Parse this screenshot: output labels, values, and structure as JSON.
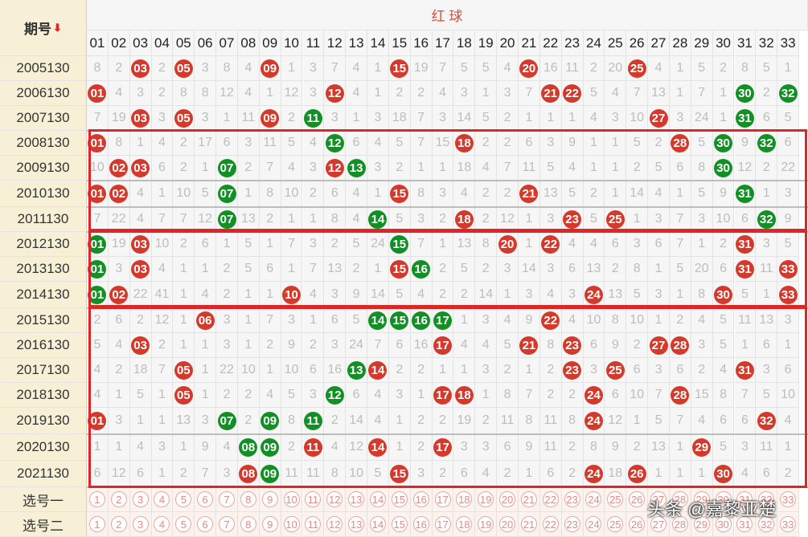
{
  "header": {
    "period_label": "期号",
    "red_ball_title": "红 球",
    "sort_icon": "down-arrow-icon"
  },
  "numbers": [
    "01",
    "02",
    "03",
    "04",
    "05",
    "06",
    "07",
    "08",
    "09",
    "10",
    "11",
    "12",
    "13",
    "14",
    "15",
    "16",
    "17",
    "18",
    "19",
    "20",
    "21",
    "22",
    "23",
    "24",
    "25",
    "26",
    "27",
    "28",
    "29",
    "30",
    "31",
    "32",
    "33"
  ],
  "colors": {
    "red_ball": "#d43a2c",
    "green_ball": "#129026",
    "box": "#e02525",
    "label_bg": "#f8f0d6"
  },
  "rows": [
    {
      "period": "2005130",
      "cells": [
        "8",
        "2",
        "R03",
        "2",
        "R05",
        "3",
        "8",
        "4",
        "R09",
        "1",
        "3",
        "7",
        "4",
        "1",
        "R15",
        "19",
        "7",
        "5",
        "5",
        "4",
        "R20",
        "16",
        "11",
        "2",
        "20",
        "R25",
        "4",
        "1",
        "5",
        "2",
        "8",
        "5",
        "1"
      ]
    },
    {
      "period": "2006130",
      "cells": [
        "R01",
        "4",
        "3",
        "2",
        "8",
        "8",
        "12",
        "4",
        "1",
        "12",
        "3",
        "R12",
        "4",
        "1",
        "2",
        "2",
        "4",
        "3",
        "1",
        "3",
        "7",
        "R21",
        "R22",
        "5",
        "4",
        "7",
        "13",
        "1",
        "7",
        "1",
        "G30",
        "2",
        "G32"
      ]
    },
    {
      "period": "2007130",
      "cells": [
        "7",
        "19",
        "R03",
        "3",
        "R05",
        "3",
        "1",
        "11",
        "R09",
        "2",
        "G11",
        "3",
        "1",
        "3",
        "18",
        "7",
        "3",
        "14",
        "5",
        "2",
        "1",
        "1",
        "1",
        "4",
        "3",
        "10",
        "R27",
        "3",
        "24",
        "1",
        "G31",
        "6",
        "5"
      ]
    },
    {
      "period": "2008130",
      "cells": [
        "R01",
        "8",
        "1",
        "4",
        "2",
        "17",
        "6",
        "3",
        "11",
        "5",
        "4",
        "G12",
        "6",
        "4",
        "5",
        "7",
        "15",
        "R18",
        "2",
        "2",
        "6",
        "3",
        "9",
        "1",
        "1",
        "5",
        "2",
        "R28",
        "5",
        "G30",
        "9",
        "G32",
        "6"
      ]
    },
    {
      "period": "2009130",
      "cells": [
        "10",
        "R02",
        "R03",
        "6",
        "2",
        "1",
        "G07",
        "2",
        "7",
        "4",
        "3",
        "R12",
        "G13",
        "3",
        "2",
        "1",
        "1",
        "18",
        "4",
        "7",
        "11",
        "5",
        "4",
        "1",
        "1",
        "2",
        "5",
        "6",
        "8",
        "G30",
        "12",
        "2",
        "22"
      ]
    },
    {
      "period": "2010130",
      "cells": [
        "R01",
        "R02",
        "4",
        "1",
        "10",
        "5",
        "G07",
        "1",
        "8",
        "10",
        "2",
        "6",
        "4",
        "1",
        "R15",
        "8",
        "3",
        "4",
        "2",
        "2",
        "R21",
        "13",
        "5",
        "2",
        "1",
        "14",
        "4",
        "1",
        "5",
        "9",
        "G31",
        "1",
        "3"
      ]
    },
    {
      "period": "2011130",
      "cells": [
        "7",
        "22",
        "4",
        "7",
        "7",
        "12",
        "G07",
        "13",
        "2",
        "1",
        "1",
        "8",
        "4",
        "G14",
        "5",
        "3",
        "2",
        "R18",
        "2",
        "12",
        "1",
        "3",
        "R23",
        "5",
        "R25",
        "1",
        "3",
        "7",
        "3",
        "10",
        "6",
        "G32",
        "9"
      ]
    },
    {
      "period": "2012130",
      "cells": [
        "G01",
        "19",
        "R03",
        "10",
        "2",
        "6",
        "1",
        "5",
        "1",
        "7",
        "3",
        "2",
        "5",
        "24",
        "G15",
        "7",
        "1",
        "13",
        "8",
        "R20",
        "1",
        "R22",
        "4",
        "4",
        "6",
        "3",
        "6",
        "7",
        "1",
        "2",
        "R31",
        "3",
        "5"
      ]
    },
    {
      "period": "2013130",
      "cells": [
        "G01",
        "3",
        "R03",
        "4",
        "1",
        "1",
        "2",
        "5",
        "6",
        "1",
        "7",
        "13",
        "2",
        "1",
        "R15",
        "G16",
        "2",
        "5",
        "2",
        "3",
        "14",
        "3",
        "6",
        "13",
        "2",
        "8",
        "1",
        "5",
        "20",
        "6",
        "R31",
        "11",
        "R33"
      ]
    },
    {
      "period": "2014130",
      "cells": [
        "G01",
        "R02",
        "22",
        "41",
        "1",
        "4",
        "2",
        "1",
        "1",
        "R10",
        "4",
        "3",
        "9",
        "14",
        "5",
        "4",
        "2",
        "2",
        "14",
        "1",
        "3",
        "4",
        "3",
        "R24",
        "13",
        "5",
        "3",
        "1",
        "8",
        "R30",
        "5",
        "1",
        "R33"
      ]
    },
    {
      "period": "2015130",
      "cells": [
        "2",
        "6",
        "2",
        "12",
        "1",
        "R06",
        "3",
        "1",
        "7",
        "3",
        "1",
        "6",
        "5",
        "G14",
        "G15",
        "G16",
        "G17",
        "1",
        "3",
        "4",
        "9",
        "R22",
        "4",
        "10",
        "8",
        "10",
        "1",
        "2",
        "4",
        "5",
        "11",
        "13",
        "3"
      ]
    },
    {
      "period": "2016130",
      "cells": [
        "5",
        "4",
        "R03",
        "2",
        "1",
        "1",
        "3",
        "1",
        "2",
        "9",
        "2",
        "3",
        "24",
        "7",
        "6",
        "16",
        "R17",
        "4",
        "4",
        "5",
        "R21",
        "8",
        "R23",
        "6",
        "9",
        "2",
        "R27",
        "R28",
        "3",
        "5",
        "1",
        "6",
        "1"
      ]
    },
    {
      "period": "2017130",
      "cells": [
        "4",
        "2",
        "18",
        "7",
        "R05",
        "1",
        "22",
        "10",
        "1",
        "10",
        "6",
        "16",
        "G13",
        "R14",
        "2",
        "2",
        "1",
        "1",
        "3",
        "2",
        "1",
        "2",
        "R23",
        "3",
        "R25",
        "6",
        "3",
        "6",
        "2",
        "4",
        "R31",
        "3",
        "6"
      ]
    },
    {
      "period": "2018130",
      "cells": [
        "4",
        "1",
        "5",
        "1",
        "R05",
        "1",
        "2",
        "2",
        "4",
        "5",
        "3",
        "G12",
        "6",
        "4",
        "3",
        "1",
        "R17",
        "R18",
        "1",
        "8",
        "7",
        "2",
        "2",
        "R24",
        "6",
        "10",
        "7",
        "R28",
        "15",
        "8",
        "7",
        "5",
        "10"
      ]
    },
    {
      "period": "2019130",
      "cells": [
        "R01",
        "3",
        "1",
        "1",
        "13",
        "3",
        "G07",
        "2",
        "G09",
        "8",
        "G11",
        "2",
        "14",
        "4",
        "1",
        "2",
        "2",
        "19",
        "2",
        "11",
        "8",
        "11",
        "8",
        "R24",
        "12",
        "1",
        "5",
        "7",
        "4",
        "6",
        "6",
        "R32",
        "4"
      ]
    },
    {
      "period": "2020130",
      "cells": [
        "1",
        "1",
        "4",
        "3",
        "1",
        "9",
        "4",
        "G08",
        "G09",
        "2",
        "R11",
        "4",
        "12",
        "R14",
        "1",
        "2",
        "R17",
        "3",
        "3",
        "6",
        "9",
        "11",
        "2",
        "8",
        "9",
        "2",
        "13",
        "1",
        "R29",
        "5",
        "3",
        "11",
        "1"
      ]
    },
    {
      "period": "2021130",
      "cells": [
        "6",
        "12",
        "6",
        "1",
        "2",
        "7",
        "3",
        "R08",
        "G09",
        "11",
        "11",
        "8",
        "10",
        "5",
        "R15",
        "3",
        "2",
        "6",
        "4",
        "2",
        "1",
        "6",
        "2",
        "R24",
        "18",
        "R26",
        "1",
        "1",
        "1",
        "R30",
        "4",
        "6",
        "2"
      ]
    }
  ],
  "select_rows": [
    {
      "label": "选号一"
    },
    {
      "label": "选号二"
    }
  ],
  "watermark": "头条 @嘉黎亚楚"
}
